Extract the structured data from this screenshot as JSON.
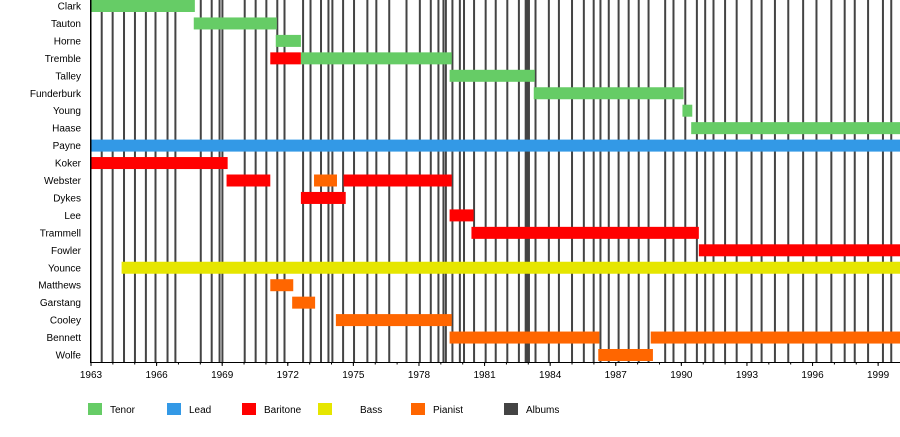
{
  "chart_data": {
    "type": "timeline",
    "title": "",
    "xlabel": "",
    "ylabel": "",
    "xlim": [
      1963,
      2000
    ],
    "x_tick_labels": [
      "1963",
      "1966",
      "1969",
      "1972",
      "1975",
      "1978",
      "1981",
      "1984",
      "1987",
      "1990",
      "1993",
      "1996",
      "1999"
    ],
    "x_ticks": [
      1963,
      1966,
      1969,
      1972,
      1975,
      1978,
      1981,
      1984,
      1987,
      1990,
      1993,
      1996,
      1999
    ],
    "colors": {
      "Tenor": "#66cc66",
      "Lead": "#3399e6",
      "Baritone": "#ff0000",
      "Bass": "#e6e600",
      "Pianist": "#ff6600",
      "Albums": "#444444"
    },
    "legend": [
      {
        "label": "Tenor",
        "color": "#66cc66"
      },
      {
        "label": "Lead",
        "color": "#3399e6"
      },
      {
        "label": "Baritone",
        "color": "#ff0000"
      },
      {
        "label": "Bass",
        "color": "#e6e600"
      },
      {
        "label": "Pianist",
        "color": "#ff6600"
      },
      {
        "label": "Albums",
        "color": "#444444"
      }
    ],
    "legend_position": "bottom",
    "members": [
      {
        "name": "Clark",
        "spans": [
          {
            "role": "Tenor",
            "start": 1963.0,
            "end": 1967.75
          }
        ]
      },
      {
        "name": "Tauton",
        "spans": [
          {
            "role": "Tenor",
            "start": 1967.7,
            "end": 1971.5
          }
        ]
      },
      {
        "name": "Horne",
        "spans": [
          {
            "role": "Tenor",
            "start": 1971.45,
            "end": 1972.6
          }
        ]
      },
      {
        "name": "Tremble",
        "spans": [
          {
            "role": "Baritone",
            "start": 1971.2,
            "end": 1972.6
          },
          {
            "role": "Tenor",
            "start": 1972.6,
            "end": 1979.5
          }
        ]
      },
      {
        "name": "Talley",
        "spans": [
          {
            "role": "Tenor",
            "start": 1979.4,
            "end": 1983.3
          }
        ]
      },
      {
        "name": "Funderburk",
        "spans": [
          {
            "role": "Tenor",
            "start": 1983.25,
            "end": 1990.1
          }
        ]
      },
      {
        "name": "Young",
        "spans": [
          {
            "role": "Tenor",
            "start": 1990.05,
            "end": 1990.5
          }
        ]
      },
      {
        "name": "Haase",
        "spans": [
          {
            "role": "Tenor",
            "start": 1990.45,
            "end": 2000
          }
        ]
      },
      {
        "name": "Payne",
        "spans": [
          {
            "role": "Lead",
            "start": 1963.0,
            "end": 2000
          }
        ]
      },
      {
        "name": "Koker",
        "spans": [
          {
            "role": "Baritone",
            "start": 1963.0,
            "end": 1969.25
          }
        ]
      },
      {
        "name": "Webster",
        "spans": [
          {
            "role": "Baritone",
            "start": 1969.2,
            "end": 1971.2
          },
          {
            "role": "Pianist",
            "start": 1973.2,
            "end": 1974.25
          },
          {
            "role": "Baritone",
            "start": 1974.55,
            "end": 1979.5
          }
        ]
      },
      {
        "name": "Dykes",
        "spans": [
          {
            "role": "Baritone",
            "start": 1972.6,
            "end": 1974.65
          }
        ]
      },
      {
        "name": "Lee",
        "spans": [
          {
            "role": "Baritone",
            "start": 1979.4,
            "end": 1980.5
          }
        ]
      },
      {
        "name": "Trammell",
        "spans": [
          {
            "role": "Baritone",
            "start": 1980.4,
            "end": 1990.8
          }
        ]
      },
      {
        "name": "Fowler",
        "spans": [
          {
            "role": "Baritone",
            "start": 1990.8,
            "end": 2000
          }
        ]
      },
      {
        "name": "Younce",
        "spans": [
          {
            "role": "Bass",
            "start": 1964.4,
            "end": 2000
          }
        ]
      },
      {
        "name": "Matthews",
        "spans": [
          {
            "role": "Pianist",
            "start": 1971.2,
            "end": 1972.25
          }
        ]
      },
      {
        "name": "Garstang",
        "spans": [
          {
            "role": "Pianist",
            "start": 1972.2,
            "end": 1973.25
          }
        ]
      },
      {
        "name": "Cooley",
        "spans": [
          {
            "role": "Pianist",
            "start": 1974.2,
            "end": 1979.5
          }
        ]
      },
      {
        "name": "Bennett",
        "spans": [
          {
            "role": "Pianist",
            "start": 1979.4,
            "end": 1986.25
          },
          {
            "role": "Pianist",
            "start": 1988.6,
            "end": 2000
          }
        ]
      },
      {
        "name": "Wolfe",
        "spans": [
          {
            "role": "Pianist",
            "start": 1986.2,
            "end": 1988.7
          }
        ]
      }
    ],
    "albums": [
      1963.49,
      1963.99,
      1964.51,
      1965.01,
      1965.51,
      1965.95,
      1966.5,
      1966.86,
      1968.02,
      1968.52,
      1968.88,
      1969.01,
      1970.03,
      1970.53,
      1971.02,
      1971.52,
      1971.85,
      1972.7,
      1973.04,
      1973.52,
      1973.86,
      1974.04,
      1974.53,
      1975.03,
      1975.64,
      1976.05,
      1976.64,
      1977.43,
      1978.04,
      1978.54,
      1978.89,
      1979.12,
      1979.23,
      1979.53,
      1979.87,
      1980.06,
      1980.52,
      1981.05,
      1981.51,
      1982.04,
      1982.57,
      1982.88,
      1982.95,
      1983.03,
      1983.33,
      1983.94,
      1984.4,
      1985.0,
      1985.54,
      1985.99,
      1986.3,
      1986.68,
      1987.13,
      1987.59,
      1988.05,
      1988.5,
      1989.26,
      1989.64,
      1990.18,
      1990.71,
      1991.09,
      1991.47,
      1992.0,
      1992.53,
      1993.21,
      1993.67,
      1994.28,
      1994.89,
      1995.57,
      1996.18,
      1996.86,
      1997.47,
      1997.93,
      1998.54,
      1999.22,
      1999.6
    ]
  }
}
